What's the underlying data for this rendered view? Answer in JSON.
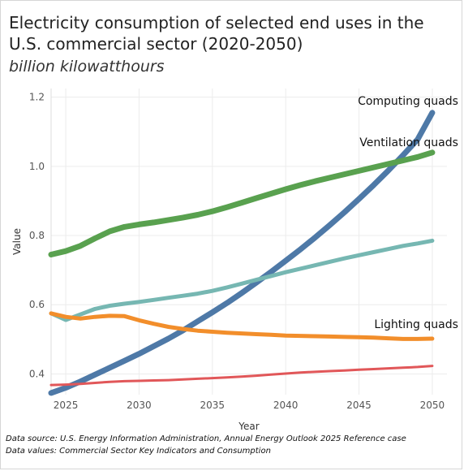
{
  "chart_data": {
    "type": "line",
    "title": "Electricity consumption of selected end uses in the U.S. commercial sector (2020-2050)",
    "subtitle": "billion kilowatthours",
    "xlabel": "Year",
    "ylabel": "Value",
    "xlim": [
      2024,
      2051
    ],
    "ylim": [
      0.34,
      1.225
    ],
    "x_ticks": [
      2025,
      2030,
      2035,
      2040,
      2045,
      2050
    ],
    "y_ticks": [
      0.4,
      0.6,
      0.8,
      1.0,
      1.2
    ],
    "y_tick_labels": [
      "0.4",
      "0.6",
      "0.8",
      "1.0",
      "1.2"
    ],
    "grid": true,
    "legend": "none",
    "x": [
      2024,
      2025,
      2026,
      2027,
      2028,
      2029,
      2030,
      2031,
      2032,
      2033,
      2034,
      2035,
      2036,
      2037,
      2038,
      2039,
      2040,
      2041,
      2042,
      2043,
      2044,
      2045,
      2046,
      2047,
      2048,
      2049,
      2050
    ],
    "series": [
      {
        "name": "Computing quads",
        "color": "#4e79a7",
        "width": 7,
        "values": [
          0.345,
          0.36,
          0.378,
          0.398,
          0.418,
          0.438,
          0.458,
          0.48,
          0.502,
          0.526,
          0.552,
          0.578,
          0.605,
          0.634,
          0.664,
          0.695,
          0.727,
          0.76,
          0.794,
          0.83,
          0.867,
          0.906,
          0.946,
          0.988,
          1.032,
          1.078,
          1.155
        ]
      },
      {
        "name": "Ventilation quads",
        "color": "#59a14f",
        "width": 7,
        "values": [
          0.745,
          0.755,
          0.77,
          0.792,
          0.812,
          0.825,
          0.832,
          0.838,
          0.845,
          0.852,
          0.86,
          0.87,
          0.882,
          0.895,
          0.908,
          0.921,
          0.934,
          0.946,
          0.957,
          0.967,
          0.977,
          0.987,
          0.997,
          1.007,
          1.017,
          1.027,
          1.04
        ]
      },
      {
        "name": "",
        "color": "#76b7b2",
        "width": 5,
        "values": [
          0.575,
          0.556,
          0.572,
          0.588,
          0.597,
          0.603,
          0.608,
          0.614,
          0.62,
          0.626,
          0.632,
          0.64,
          0.65,
          0.661,
          0.672,
          0.683,
          0.694,
          0.704,
          0.714,
          0.724,
          0.734,
          0.743,
          0.752,
          0.761,
          0.77,
          0.777,
          0.785
        ]
      },
      {
        "name": "Lighting quads",
        "color": "#f28e2b",
        "width": 5,
        "values": [
          0.575,
          0.565,
          0.56,
          0.565,
          0.568,
          0.567,
          0.555,
          0.545,
          0.536,
          0.53,
          0.525,
          0.522,
          0.519,
          0.517,
          0.515,
          0.513,
          0.511,
          0.51,
          0.509,
          0.508,
          0.507,
          0.506,
          0.505,
          0.503,
          0.501,
          0.501,
          0.502
        ]
      },
      {
        "name": "",
        "color": "#e15759",
        "width": 3,
        "values": [
          0.368,
          0.369,
          0.371,
          0.374,
          0.377,
          0.379,
          0.38,
          0.381,
          0.382,
          0.384,
          0.386,
          0.388,
          0.39,
          0.392,
          0.395,
          0.398,
          0.401,
          0.404,
          0.406,
          0.408,
          0.41,
          0.412,
          0.414,
          0.416,
          0.418,
          0.42,
          0.423
        ]
      }
    ]
  },
  "footer": {
    "source": "Data source: U.S. Energy Information Administration, Annual Energy Outlook 2025 Reference case",
    "values": "Data values: Commercial Sector Key Indicators and Consumption"
  }
}
